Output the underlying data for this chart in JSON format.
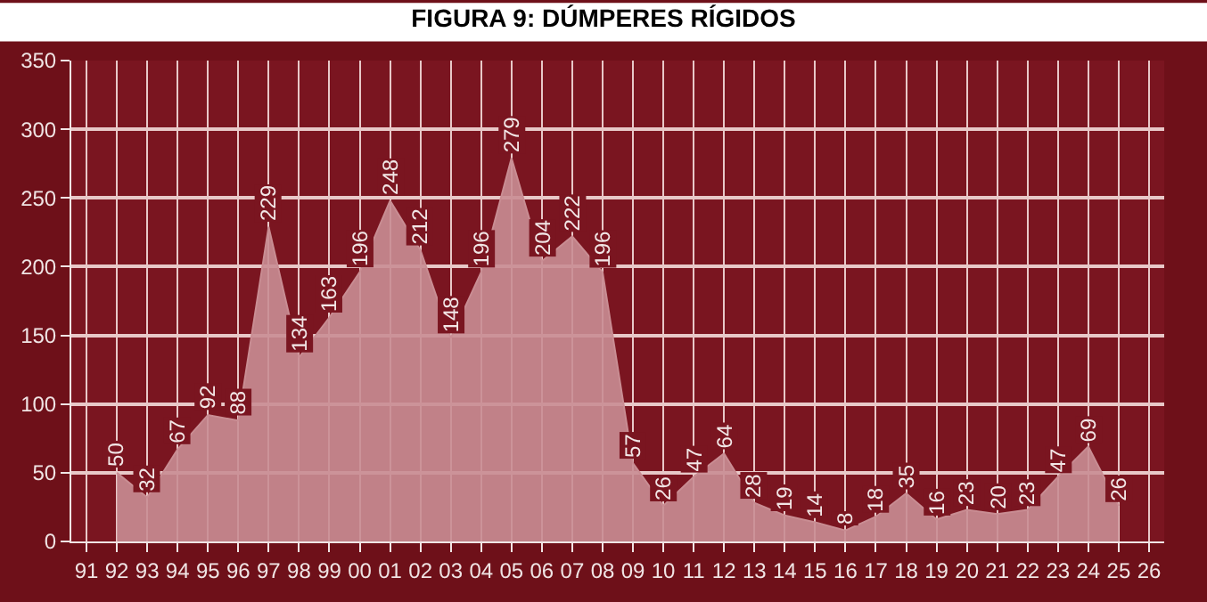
{
  "chart_data": {
    "type": "area",
    "title": "FIGURA 9: DÚMPERES RÍGIDOS",
    "categories": [
      "91",
      "92",
      "93",
      "94",
      "95",
      "96",
      "97",
      "98",
      "99",
      "00",
      "01",
      "02",
      "03",
      "04",
      "05",
      "06",
      "07",
      "08",
      "09",
      "10",
      "11",
      "12",
      "13",
      "14",
      "15",
      "16",
      "17",
      "18",
      "19",
      "20",
      "21",
      "22",
      "23",
      "24",
      "25",
      "26"
    ],
    "series": [
      {
        "color": "#c98d93",
        "values": [
          null,
          50,
          32,
          67,
          92,
          88,
          229,
          134,
          163,
          196,
          248,
          212,
          148,
          196,
          279,
          204,
          222,
          196,
          57,
          26,
          47,
          64,
          28,
          19,
          14,
          8,
          18,
          35,
          16,
          23,
          20,
          23,
          47,
          69,
          26,
          null
        ]
      }
    ],
    "ylim": [
      0,
      350
    ],
    "yticks": [
      0,
      50,
      100,
      150,
      200,
      250,
      300,
      350
    ],
    "grid": true,
    "data_labels": true
  }
}
